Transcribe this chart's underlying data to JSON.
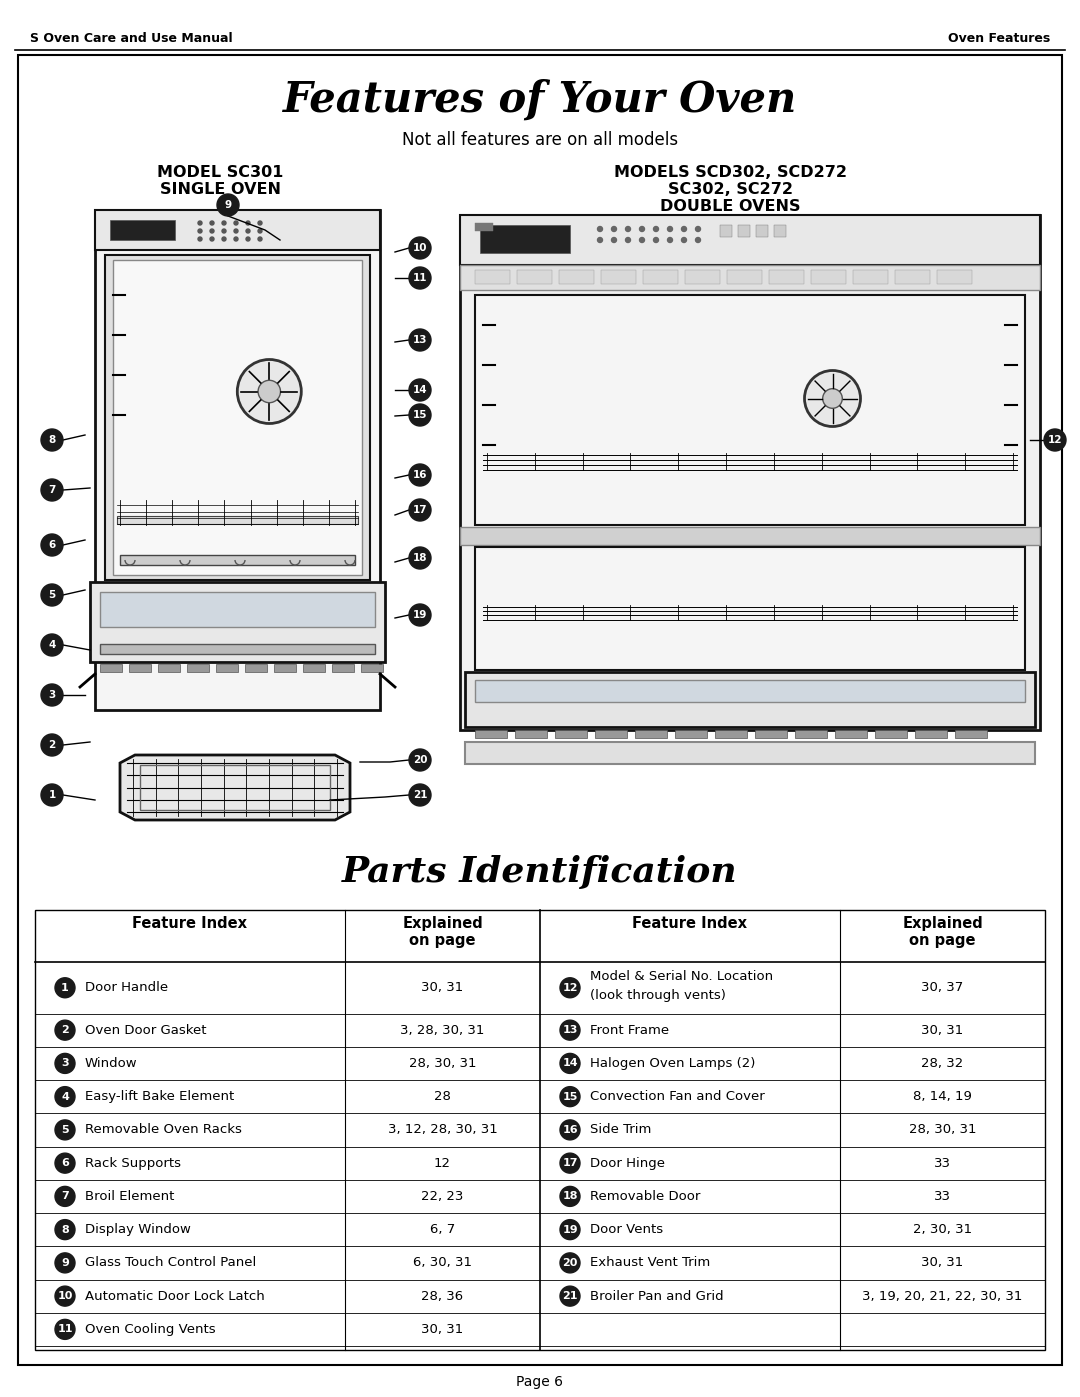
{
  "page_header_left": "S Oven Care and Use Manual",
  "page_header_right": "Oven Features",
  "main_title": "Features of Your Oven",
  "subtitle": "Not all features are on all models",
  "model_left_title": "MODEL SC301",
  "model_left_subtitle": "SINGLE OVEN",
  "model_right_title": "MODELS SCD302, SCD272",
  "model_right_subtitle1": "SC302, SC272",
  "model_right_subtitle2": "DOUBLE OVENS",
  "section_title": "Parts Identification",
  "page_number": "Page 6",
  "table_header_left1": "Feature Index",
  "table_header_left2": "Explained\non page",
  "table_header_right1": "Feature Index",
  "table_header_right2": "Explained\non page",
  "rows_left": [
    {
      "num": "1",
      "name": "Door Handle",
      "page": "30, 31"
    },
    {
      "num": "2",
      "name": "Oven Door Gasket",
      "page": "3, 28, 30, 31"
    },
    {
      "num": "3",
      "name": "Window",
      "page": "28, 30, 31"
    },
    {
      "num": "4",
      "name": "Easy-lift Bake Element",
      "page": "28"
    },
    {
      "num": "5",
      "name": "Removable Oven Racks",
      "page": "3, 12, 28, 30, 31"
    },
    {
      "num": "6",
      "name": "Rack Supports",
      "page": "12"
    },
    {
      "num": "7",
      "name": "Broil Element",
      "page": "22, 23"
    },
    {
      "num": "8",
      "name": "Display Window",
      "page": "6, 7"
    },
    {
      "num": "9",
      "name": "Glass Touch Control Panel",
      "page": "6, 30, 31"
    },
    {
      "num": "10",
      "name": "Automatic Door Lock Latch",
      "page": "28, 36"
    },
    {
      "num": "11",
      "name": "Oven Cooling Vents",
      "page": "30, 31"
    }
  ],
  "rows_right": [
    {
      "num": "12",
      "name": "Model & Serial No. Location\n(look through vents)",
      "page": "30, 37"
    },
    {
      "num": "13",
      "name": "Front Frame",
      "page": "30, 31"
    },
    {
      "num": "14",
      "name": "Halogen Oven Lamps (2)",
      "page": "28, 32"
    },
    {
      "num": "15",
      "name": "Convection Fan and Cover",
      "page": "8, 14, 19"
    },
    {
      "num": "16",
      "name": "Side Trim",
      "page": "28, 30, 31"
    },
    {
      "num": "17",
      "name": "Door Hinge",
      "page": "33"
    },
    {
      "num": "18",
      "name": "Removable Door",
      "page": "33"
    },
    {
      "num": "19",
      "name": "Door Vents",
      "page": "2, 30, 31"
    },
    {
      "num": "20",
      "name": "Exhaust Vent Trim",
      "page": "30, 31"
    },
    {
      "num": "21",
      "name": "Broiler Pan and Grid",
      "page": "3, 19, 20, 21, 22, 30, 31"
    }
  ],
  "bg_color": "#ffffff",
  "border_color": "#000000",
  "text_color": "#000000",
  "circle_color": "#1a1a1a",
  "circle_text_color": "#ffffff"
}
